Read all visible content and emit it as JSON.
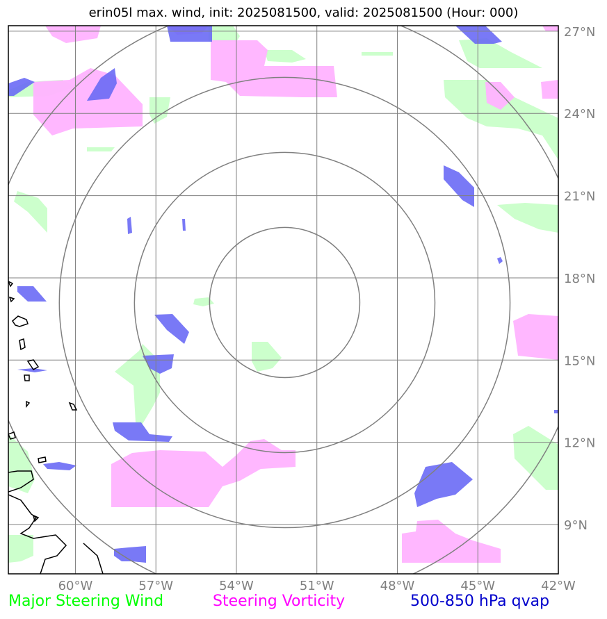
{
  "title": "erin05l max. wind, init: 2025081500, valid: 2025081500 (Hour: 000)",
  "map": {
    "lon_range": [
      -62.5,
      -42
    ],
    "lat_range": [
      7.2,
      27.2
    ],
    "lon_ticks": [
      {
        "value": -60,
        "label": "60°W"
      },
      {
        "value": -57,
        "label": "57°W"
      },
      {
        "value": -54,
        "label": "54°W"
      },
      {
        "value": -51,
        "label": "51°W"
      },
      {
        "value": -48,
        "label": "48°W"
      },
      {
        "value": -45,
        "label": "45°W"
      },
      {
        "value": -42,
        "label": "42°W"
      }
    ],
    "lat_ticks": [
      {
        "value": 27,
        "label": "27°N"
      },
      {
        "value": 24,
        "label": "24°N"
      },
      {
        "value": 21,
        "label": "21°N"
      },
      {
        "value": 18,
        "label": "18°N"
      },
      {
        "value": 15,
        "label": "15°N"
      },
      {
        "value": 12,
        "label": "12°N"
      },
      {
        "value": 9,
        "label": "9°N"
      }
    ],
    "center": {
      "lon": -52.2,
      "lat": 17.1
    },
    "range_rings_deg": [
      2.8,
      5.6,
      8.4,
      11.2
    ],
    "grid": true,
    "colors": {
      "grid": "#808080",
      "rings": "#808080",
      "steering_wind": "#ccffcc",
      "vorticity": "#ffb3ff",
      "qvap": "#6a6af5",
      "coastline": "#000000"
    }
  },
  "legend": {
    "wind": {
      "label": "Major Steering Wind",
      "color": "#00ff00"
    },
    "vorticity": {
      "label": "Steering Vorticity",
      "color": "#ff00ff"
    },
    "qvap": {
      "label": "500-850 hPa qvap",
      "color": "#0000cc"
    }
  }
}
